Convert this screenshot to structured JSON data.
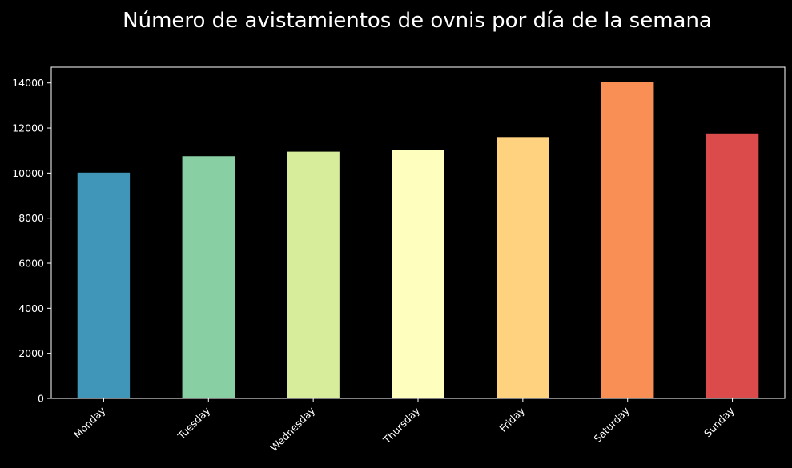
{
  "chart_data": {
    "type": "bar",
    "title": "Número de avistamientos de ovnis por día de la semana",
    "xlabel": "",
    "ylabel": "",
    "categories": [
      "Monday",
      "Tuesday",
      "Wednesday",
      "Thursday",
      "Friday",
      "Saturday",
      "Sunday"
    ],
    "values": [
      10020,
      10750,
      10950,
      11020,
      11600,
      14050,
      11760
    ],
    "colors": [
      "#3f96b8",
      "#88cfa4",
      "#d7ed9b",
      "#feffbe",
      "#fed27f",
      "#fa8f55",
      "#dc4b4c"
    ],
    "ylim": [
      0,
      14700
    ],
    "yticks": [
      0,
      2000,
      4000,
      6000,
      8000,
      10000,
      12000,
      14000
    ],
    "grid": false,
    "legend": "none",
    "background": "#000000",
    "text_color": "#ffffff"
  }
}
